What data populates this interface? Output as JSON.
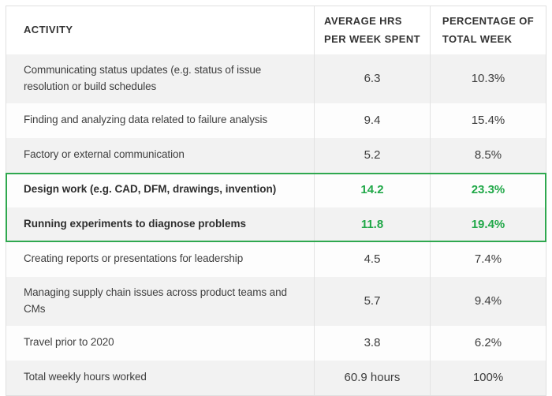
{
  "header": {
    "col_activity": "ACTIVITY",
    "col_hours": "AVERAGE HRS\nPER WEEK SPENT",
    "col_percent": "PERCENTAGE OF\nTOTAL WEEK"
  },
  "chart_data": {
    "type": "table",
    "columns": [
      "ACTIVITY",
      "AVERAGE HRS PER WEEK SPENT",
      "PERCENTAGE OF TOTAL WEEK"
    ],
    "rows": [
      {
        "activity": "Communicating status updates (e.g. status of issue resolution or build schedules",
        "hours": "6.3",
        "percent": "10.3%",
        "highlighted": false
      },
      {
        "activity": "Finding and analyzing data related to failure analysis",
        "hours": "9.4",
        "percent": "15.4%",
        "highlighted": false
      },
      {
        "activity": "Factory or external communication",
        "hours": "5.2",
        "percent": "8.5%",
        "highlighted": false
      },
      {
        "activity": "Design work (e.g. CAD, DFM, drawings, invention)",
        "hours": "14.2",
        "percent": "23.3%",
        "highlighted": true
      },
      {
        "activity": "Running experiments to diagnose problems",
        "hours": "11.8",
        "percent": "19.4%",
        "highlighted": true
      },
      {
        "activity": "Creating reports or presentations for leadership",
        "hours": "4.5",
        "percent": "7.4%",
        "highlighted": false
      },
      {
        "activity": "Managing supply chain issues across product teams and CMs",
        "hours": "5.7",
        "percent": "9.4%",
        "highlighted": false
      },
      {
        "activity": "Travel prior to 2020",
        "hours": "3.8",
        "percent": "6.2%",
        "highlighted": false
      },
      {
        "activity": "Total weekly hours worked",
        "hours": "60.9 hours",
        "percent": "100%",
        "highlighted": false
      }
    ]
  },
  "colors": {
    "highlight_green_text": "#20a848",
    "highlight_green_border": "#2fa84f",
    "row_alt_gray": "#f2f2f2",
    "table_border_gray": "#e0e0e0",
    "text_dark": "#3d3d3d"
  }
}
